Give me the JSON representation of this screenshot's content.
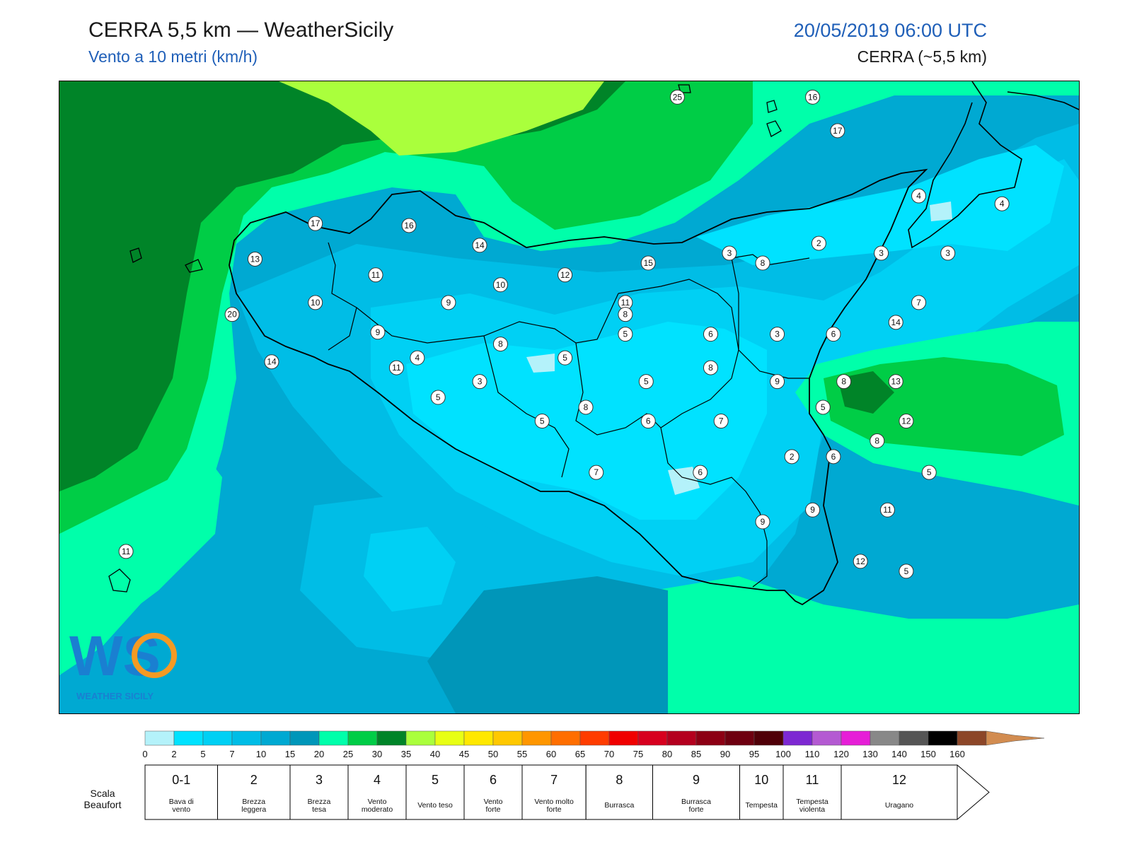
{
  "header": {
    "title": "CERRA 5,5 km — WeatherSicily",
    "subtitle": "Vento a 10 metri (km/h)",
    "datetime": "20/05/2019 06:00 UTC",
    "model": "CERRA (~5,5 km)"
  },
  "logo": {
    "text": "WEATHER SICILY",
    "mark": "WS"
  },
  "map": {
    "field": "wind speed at 10 m (km/h)",
    "station_values": [
      {
        "v": "25",
        "lon": 14.57,
        "lat": 38.82
      },
      {
        "v": "16",
        "lon": 15.22,
        "lat": 38.82
      },
      {
        "v": "17",
        "lon": 15.34,
        "lat": 38.65
      },
      {
        "v": "4",
        "lon": 15.73,
        "lat": 38.32
      },
      {
        "v": "4",
        "lon": 16.13,
        "lat": 38.28
      },
      {
        "v": "17",
        "lon": 12.83,
        "lat": 38.18
      },
      {
        "v": "16",
        "lon": 13.28,
        "lat": 38.17
      },
      {
        "v": "14",
        "lon": 13.62,
        "lat": 38.07
      },
      {
        "v": "13",
        "lon": 12.54,
        "lat": 38.0
      },
      {
        "v": "2",
        "lon": 15.25,
        "lat": 38.08
      },
      {
        "v": "3",
        "lon": 14.82,
        "lat": 38.03
      },
      {
        "v": "3",
        "lon": 15.55,
        "lat": 38.03
      },
      {
        "v": "3",
        "lon": 15.87,
        "lat": 38.03
      },
      {
        "v": "15",
        "lon": 14.43,
        "lat": 37.98
      },
      {
        "v": "8",
        "lon": 14.98,
        "lat": 37.98
      },
      {
        "v": "11",
        "lon": 13.12,
        "lat": 37.92
      },
      {
        "v": "12",
        "lon": 14.03,
        "lat": 37.92
      },
      {
        "v": "10",
        "lon": 13.72,
        "lat": 37.87
      },
      {
        "v": "7",
        "lon": 15.73,
        "lat": 37.78
      },
      {
        "v": "10",
        "lon": 12.83,
        "lat": 37.78
      },
      {
        "v": "9",
        "lon": 13.47,
        "lat": 37.78
      },
      {
        "v": "11",
        "lon": 14.32,
        "lat": 37.78
      },
      {
        "v": "20",
        "lon": 12.43,
        "lat": 37.72
      },
      {
        "v": "8",
        "lon": 14.32,
        "lat": 37.72
      },
      {
        "v": "14",
        "lon": 15.62,
        "lat": 37.68
      },
      {
        "v": "9",
        "lon": 13.13,
        "lat": 37.63
      },
      {
        "v": "5",
        "lon": 14.32,
        "lat": 37.62
      },
      {
        "v": "6",
        "lon": 14.73,
        "lat": 37.62
      },
      {
        "v": "3",
        "lon": 15.05,
        "lat": 37.62
      },
      {
        "v": "6",
        "lon": 15.32,
        "lat": 37.62
      },
      {
        "v": "8",
        "lon": 13.72,
        "lat": 37.57
      },
      {
        "v": "14",
        "lon": 12.62,
        "lat": 37.48
      },
      {
        "v": "4",
        "lon": 13.32,
        "lat": 37.5
      },
      {
        "v": "5",
        "lon": 14.03,
        "lat": 37.5
      },
      {
        "v": "11",
        "lon": 13.22,
        "lat": 37.45
      },
      {
        "v": "8",
        "lon": 14.73,
        "lat": 37.45
      },
      {
        "v": "3",
        "lon": 13.62,
        "lat": 37.38
      },
      {
        "v": "5",
        "lon": 14.42,
        "lat": 37.38
      },
      {
        "v": "9",
        "lon": 15.05,
        "lat": 37.38
      },
      {
        "v": "8",
        "lon": 15.37,
        "lat": 37.38
      },
      {
        "v": "13",
        "lon": 15.62,
        "lat": 37.38
      },
      {
        "v": "5",
        "lon": 13.42,
        "lat": 37.3
      },
      {
        "v": "8",
        "lon": 14.13,
        "lat": 37.25
      },
      {
        "v": "5",
        "lon": 15.27,
        "lat": 37.25
      },
      {
        "v": "5",
        "lon": 13.92,
        "lat": 37.18
      },
      {
        "v": "6",
        "lon": 14.43,
        "lat": 37.18
      },
      {
        "v": "7",
        "lon": 14.78,
        "lat": 37.18
      },
      {
        "v": "12",
        "lon": 15.67,
        "lat": 37.18
      },
      {
        "v": "8",
        "lon": 15.53,
        "lat": 37.08
      },
      {
        "v": "2",
        "lon": 15.12,
        "lat": 37.0
      },
      {
        "v": "6",
        "lon": 15.32,
        "lat": 37.0
      },
      {
        "v": "7",
        "lon": 14.18,
        "lat": 36.92
      },
      {
        "v": "6",
        "lon": 14.68,
        "lat": 36.92
      },
      {
        "v": "5",
        "lon": 15.78,
        "lat": 36.92
      },
      {
        "v": "9",
        "lon": 15.22,
        "lat": 36.73
      },
      {
        "v": "11",
        "lon": 15.58,
        "lat": 36.73
      },
      {
        "v": "9",
        "lon": 14.98,
        "lat": 36.67
      },
      {
        "v": "11",
        "lon": 11.92,
        "lat": 36.52
      },
      {
        "v": "12",
        "lon": 15.45,
        "lat": 36.47
      },
      {
        "v": "5",
        "lon": 15.67,
        "lat": 36.42
      }
    ]
  },
  "legend": {
    "ticks": [
      "0",
      "2",
      "5",
      "7",
      "10",
      "15",
      "20",
      "25",
      "30",
      "35",
      "40",
      "45",
      "50",
      "55",
      "60",
      "65",
      "70",
      "75",
      "80",
      "85",
      "90",
      "95",
      "100",
      "110",
      "120",
      "130",
      "140",
      "150",
      "160"
    ],
    "colors": [
      "#b4f2fa",
      "#00e2ff",
      "#00d0f4",
      "#00bde6",
      "#00a9d2",
      "#0096b9",
      "#00ffaa",
      "#00cd46",
      "#008428",
      "#aaff3c",
      "#e8ff14",
      "#ffe800",
      "#ffc800",
      "#ff9600",
      "#ff6e00",
      "#ff3c00",
      "#f00000",
      "#d7001e",
      "#b4001e",
      "#8c0014",
      "#6e0010",
      "#500008",
      "#7d28d2",
      "#b45ad2",
      "#e61ed7",
      "#888888",
      "#555555",
      "#000000",
      "#8c4628",
      "#d28c50"
    ],
    "beaufort_title_1": "Scala",
    "beaufort_title_2": "Beaufort",
    "beaufort": [
      {
        "num": "0-1",
        "desc1": "Bava di",
        "desc2": "vento"
      },
      {
        "num": "2",
        "desc1": "Brezza",
        "desc2": "leggera"
      },
      {
        "num": "3",
        "desc1": "Brezza",
        "desc2": "tesa"
      },
      {
        "num": "4",
        "desc1": "Vento",
        "desc2": "moderato"
      },
      {
        "num": "5",
        "desc1": "Vento teso",
        "desc2": ""
      },
      {
        "num": "6",
        "desc1": "Vento",
        "desc2": "forte"
      },
      {
        "num": "7",
        "desc1": "Vento molto",
        "desc2": "forte"
      },
      {
        "num": "8",
        "desc1": "Burrasca",
        "desc2": ""
      },
      {
        "num": "9",
        "desc1": "Burrasca",
        "desc2": "forte"
      },
      {
        "num": "10",
        "desc1": "Tempesta",
        "desc2": ""
      },
      {
        "num": "11",
        "desc1": "Tempesta",
        "desc2": "violenta"
      },
      {
        "num": "12",
        "desc1": "Uragano",
        "desc2": ""
      }
    ]
  }
}
